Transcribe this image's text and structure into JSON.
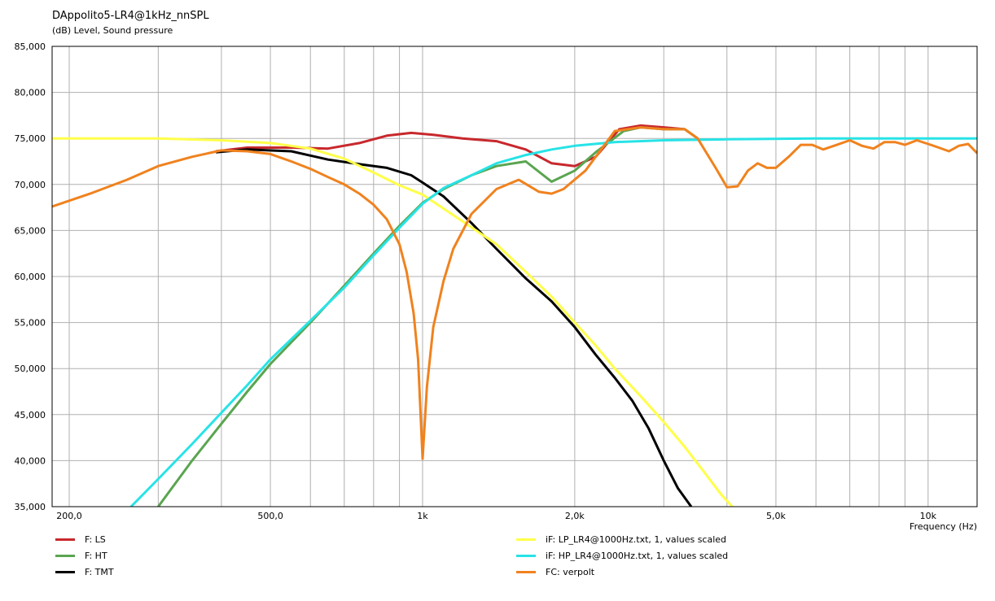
{
  "chart_data": {
    "type": "line",
    "title": "DAppolito5-LR4@1kHz_nnSPL",
    "subtitle": "(dB)  Level, Sound pressure",
    "xlabel": "Frequency  (Hz)",
    "x_scale": "log",
    "xlim": [
      185,
      12500
    ],
    "ylim": [
      35000,
      85000
    ],
    "grid": true,
    "legend_position": "bottom",
    "y_ticks": [
      {
        "v": 85000,
        "label": "85,000"
      },
      {
        "v": 80000,
        "label": "80,000"
      },
      {
        "v": 75000,
        "label": "75,000"
      },
      {
        "v": 70000,
        "label": "70,000"
      },
      {
        "v": 65000,
        "label": "65,000"
      },
      {
        "v": 60000,
        "label": "60,000"
      },
      {
        "v": 55000,
        "label": "55,000"
      },
      {
        "v": 50000,
        "label": "50,000"
      },
      {
        "v": 45000,
        "label": "45,000"
      },
      {
        "v": 40000,
        "label": "40,000"
      },
      {
        "v": 35000,
        "label": "35,000"
      }
    ],
    "x_ticks": [
      {
        "v": 200,
        "label": "200,0"
      },
      {
        "v": 500,
        "label": "500,0"
      },
      {
        "v": 1000,
        "label": "1k"
      },
      {
        "v": 2000,
        "label": "2,0k"
      },
      {
        "v": 5000,
        "label": "5,0k"
      },
      {
        "v": 10000,
        "label": "10k"
      }
    ],
    "x_grid": [
      200,
      300,
      400,
      500,
      600,
      700,
      800,
      900,
      1000,
      2000,
      3000,
      4000,
      5000,
      6000,
      7000,
      8000,
      9000,
      10000
    ],
    "series": [
      {
        "name": "F: LS",
        "color": "#c8282d",
        "points": [
          [
            390,
            73600
          ],
          [
            450,
            74000
          ],
          [
            550,
            74000
          ],
          [
            650,
            73900
          ],
          [
            750,
            74500
          ],
          [
            850,
            75300
          ],
          [
            950,
            75600
          ],
          [
            1050,
            75400
          ],
          [
            1200,
            75000
          ],
          [
            1400,
            74700
          ],
          [
            1600,
            73800
          ],
          [
            1800,
            72300
          ],
          [
            2000,
            72000
          ],
          [
            2200,
            73000
          ],
          [
            2450,
            76000
          ],
          [
            2700,
            76400
          ],
          [
            3000,
            76200
          ],
          [
            3300,
            76000
          ],
          [
            3500,
            75000
          ]
        ]
      },
      {
        "name": "F: HT",
        "color": "#5aa550",
        "points": [
          [
            300,
            35000
          ],
          [
            350,
            40000
          ],
          [
            400,
            44000
          ],
          [
            450,
            47500
          ],
          [
            500,
            50500
          ],
          [
            600,
            55000
          ],
          [
            700,
            59000
          ],
          [
            800,
            62500
          ],
          [
            900,
            65500
          ],
          [
            1000,
            68000
          ],
          [
            1100,
            69500
          ],
          [
            1250,
            71000
          ],
          [
            1400,
            72000
          ],
          [
            1600,
            72500
          ],
          [
            1800,
            70300
          ],
          [
            2000,
            71500
          ],
          [
            2200,
            73500
          ],
          [
            2500,
            75800
          ],
          [
            2700,
            76200
          ],
          [
            3000,
            76000
          ],
          [
            3300,
            76000
          ],
          [
            3500,
            75000
          ]
        ]
      },
      {
        "name": "F: TMT",
        "color": "#000000",
        "points": [
          [
            390,
            73500
          ],
          [
            450,
            73800
          ],
          [
            550,
            73600
          ],
          [
            650,
            72700
          ],
          [
            750,
            72200
          ],
          [
            850,
            71800
          ],
          [
            950,
            71000
          ],
          [
            1000,
            70200
          ],
          [
            1100,
            68700
          ],
          [
            1250,
            65800
          ],
          [
            1400,
            63000
          ],
          [
            1600,
            59800
          ],
          [
            1800,
            57300
          ],
          [
            2000,
            54500
          ],
          [
            2200,
            51500
          ],
          [
            2400,
            49000
          ],
          [
            2600,
            46500
          ],
          [
            2800,
            43500
          ],
          [
            3000,
            40000
          ],
          [
            3200,
            37000
          ],
          [
            3400,
            35000
          ]
        ]
      },
      {
        "name": "iF: LP_LR4@1000Hz.txt, 1, values scaled",
        "color": "#ffff4a",
        "points": [
          [
            185,
            75000
          ],
          [
            300,
            75000
          ],
          [
            400,
            74800
          ],
          [
            500,
            74500
          ],
          [
            600,
            73900
          ],
          [
            700,
            72800
          ],
          [
            800,
            71300
          ],
          [
            900,
            69900
          ],
          [
            1000,
            68900
          ],
          [
            1200,
            66000
          ],
          [
            1400,
            63500
          ],
          [
            1600,
            60500
          ],
          [
            1800,
            57800
          ],
          [
            2000,
            55000
          ],
          [
            2200,
            52500
          ],
          [
            2400,
            50000
          ],
          [
            2700,
            47000
          ],
          [
            3000,
            44200
          ],
          [
            3300,
            41500
          ],
          [
            3600,
            38800
          ],
          [
            3900,
            36300
          ],
          [
            4100,
            35000
          ]
        ]
      },
      {
        "name": "iF: HP_LR4@1000Hz.txt, 1, values scaled",
        "color": "#27e3e6",
        "points": [
          [
            265,
            35000
          ],
          [
            300,
            38000
          ],
          [
            350,
            41800
          ],
          [
            400,
            45200
          ],
          [
            450,
            48200
          ],
          [
            500,
            51000
          ],
          [
            600,
            55200
          ],
          [
            700,
            58800
          ],
          [
            800,
            62300
          ],
          [
            900,
            65300
          ],
          [
            1000,
            67900
          ],
          [
            1100,
            69600
          ],
          [
            1250,
            71000
          ],
          [
            1400,
            72300
          ],
          [
            1600,
            73200
          ],
          [
            1800,
            73800
          ],
          [
            2000,
            74200
          ],
          [
            2400,
            74600
          ],
          [
            3000,
            74800
          ],
          [
            4000,
            74900
          ],
          [
            6000,
            75000
          ],
          [
            12500,
            75000
          ]
        ]
      },
      {
        "name": "FC: verpolt",
        "color": "#f0821e",
        "points": [
          [
            185,
            67600
          ],
          [
            220,
            69000
          ],
          [
            260,
            70500
          ],
          [
            300,
            72000
          ],
          [
            350,
            73000
          ],
          [
            400,
            73700
          ],
          [
            450,
            73600
          ],
          [
            500,
            73300
          ],
          [
            550,
            72500
          ],
          [
            600,
            71700
          ],
          [
            650,
            70800
          ],
          [
            700,
            70000
          ],
          [
            750,
            69000
          ],
          [
            800,
            67800
          ],
          [
            850,
            66200
          ],
          [
            900,
            63500
          ],
          [
            930,
            60500
          ],
          [
            960,
            56000
          ],
          [
            980,
            51000
          ],
          [
            1000,
            40200
          ],
          [
            1020,
            48000
          ],
          [
            1050,
            54500
          ],
          [
            1100,
            59500
          ],
          [
            1150,
            63000
          ],
          [
            1250,
            66800
          ],
          [
            1400,
            69500
          ],
          [
            1550,
            70500
          ],
          [
            1700,
            69200
          ],
          [
            1800,
            69000
          ],
          [
            1900,
            69500
          ],
          [
            2100,
            71500
          ],
          [
            2400,
            75800
          ],
          [
            2700,
            76200
          ],
          [
            3000,
            76000
          ],
          [
            3300,
            76000
          ],
          [
            3500,
            75000
          ],
          [
            3800,
            71800
          ],
          [
            4000,
            69700
          ],
          [
            4200,
            69800
          ],
          [
            4400,
            71500
          ],
          [
            4600,
            72300
          ],
          [
            4800,
            71800
          ],
          [
            5000,
            71800
          ],
          [
            5300,
            73000
          ],
          [
            5600,
            74300
          ],
          [
            5900,
            74300
          ],
          [
            6200,
            73800
          ],
          [
            6600,
            74300
          ],
          [
            7000,
            74800
          ],
          [
            7400,
            74200
          ],
          [
            7800,
            73900
          ],
          [
            8200,
            74600
          ],
          [
            8600,
            74600
          ],
          [
            9000,
            74300
          ],
          [
            9500,
            74800
          ],
          [
            10000,
            74400
          ],
          [
            10500,
            74000
          ],
          [
            11000,
            73600
          ],
          [
            11500,
            74200
          ],
          [
            12000,
            74400
          ],
          [
            12500,
            73400
          ]
        ]
      }
    ]
  }
}
